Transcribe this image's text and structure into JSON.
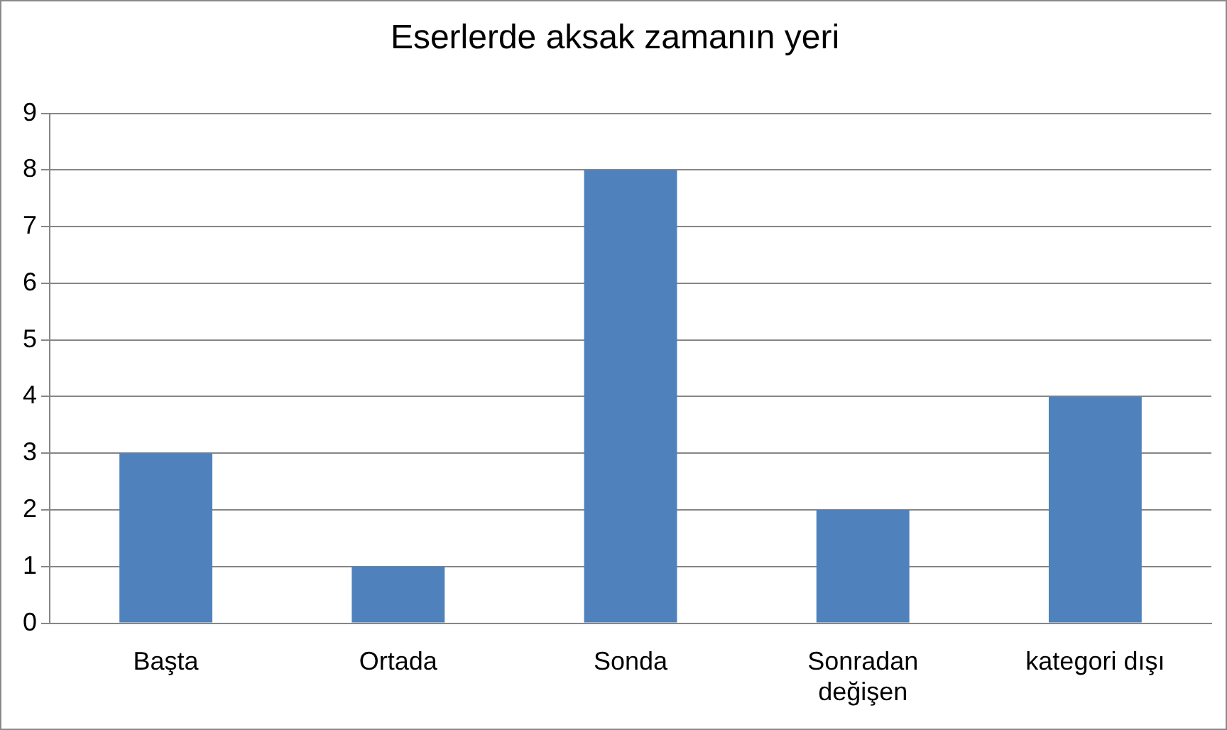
{
  "chart_data": {
    "type": "bar",
    "title": "Eserlerde aksak zamanın yeri",
    "categories": [
      "Başta",
      "Ortada",
      "Sonda",
      "Sonradan değişen",
      "kategori dışı"
    ],
    "values": [
      3,
      1,
      8,
      2,
      4
    ],
    "color": "#4f81bd",
    "ylim": [
      0,
      9
    ],
    "yticks": [
      0,
      1,
      2,
      3,
      4,
      5,
      6,
      7,
      8,
      9
    ],
    "grid": "y",
    "legend": false
  }
}
